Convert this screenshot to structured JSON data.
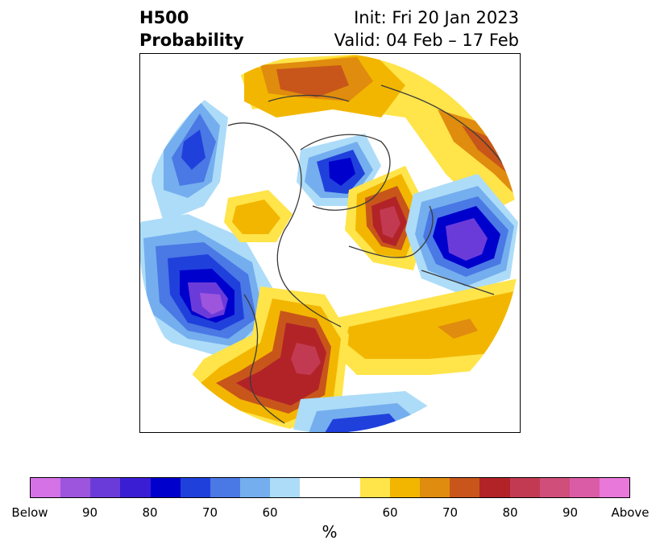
{
  "title": {
    "left_line1": "H500",
    "left_line2": "Probability",
    "right_line1": "Init: Fri 20 Jan 2023",
    "right_line2": "Valid: 04 Feb – 17 Feb"
  },
  "colorbar": {
    "unit_label": "%",
    "ticks": [
      "Below",
      "90",
      "80",
      "70",
      "60",
      "",
      "60",
      "70",
      "80",
      "90",
      "Above"
    ],
    "colors": [
      "#d573e6",
      "#9d55de",
      "#6b3bd9",
      "#3a1ed4",
      "#0000cd",
      "#2040dc",
      "#4a78e4",
      "#74aeee",
      "#addcf8",
      "#ffffff",
      "#ffffff",
      "#ffe44a",
      "#f2b600",
      "#e08c0e",
      "#c8561a",
      "#b22328",
      "#c23a52",
      "#cf4e7a",
      "#db5ca6",
      "#e878da"
    ]
  },
  "map": {
    "projection": "north polar stereographic",
    "feature_colors": {
      "coast": "#3a3a3a",
      "frame": "#000000"
    }
  }
}
